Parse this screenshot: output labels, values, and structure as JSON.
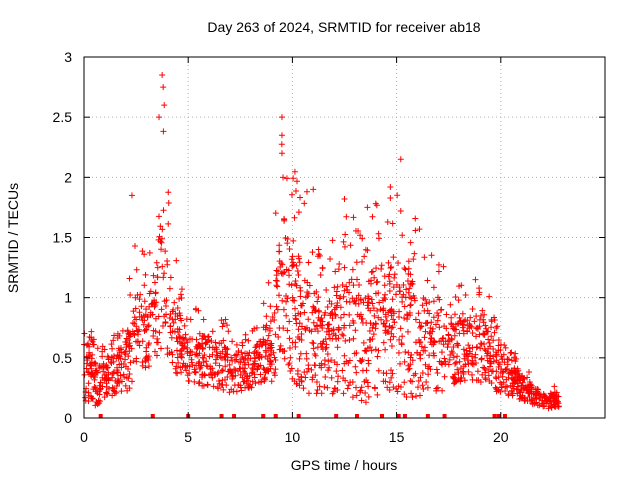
{
  "chart_data": {
    "type": "scatter",
    "title": "Day 263 of 2024, SRMTID for receiver ab18",
    "xlabel": "GPS time / hours",
    "ylabel": "SRMTID / TECUs",
    "xlim": [
      0,
      25
    ],
    "ylim": [
      0,
      3
    ],
    "x_ticks": [
      0,
      5,
      10,
      15,
      20
    ],
    "y_ticks": [
      0,
      0.5,
      1,
      1.5,
      2,
      2.5,
      3
    ],
    "x_tick_labels": [
      "0",
      "5",
      "10",
      "15",
      "20"
    ],
    "y_tick_labels": [
      "0",
      "0.5",
      "1",
      "1.5",
      "2",
      "2.5",
      "3"
    ],
    "grid": true,
    "marker": "+",
    "color": "#ff0000",
    "series": [
      {
        "name": "SRMTID",
        "envelope": [
          {
            "x": 0.0,
            "low": 0.15,
            "high": 0.85
          },
          {
            "x": 0.5,
            "low": 0.1,
            "high": 0.7
          },
          {
            "x": 1.0,
            "low": 0.15,
            "high": 0.6
          },
          {
            "x": 1.5,
            "low": 0.2,
            "high": 0.75
          },
          {
            "x": 2.0,
            "low": 0.2,
            "high": 0.9
          },
          {
            "x": 2.5,
            "low": 0.3,
            "high": 1.6
          },
          {
            "x": 3.0,
            "low": 0.4,
            "high": 1.3
          },
          {
            "x": 3.5,
            "low": 0.5,
            "high": 2.1
          },
          {
            "x": 3.8,
            "low": 0.6,
            "high": 2.85
          },
          {
            "x": 4.2,
            "low": 0.4,
            "high": 1.5
          },
          {
            "x": 5.0,
            "low": 0.3,
            "high": 0.9
          },
          {
            "x": 6.0,
            "low": 0.25,
            "high": 1.0
          },
          {
            "x": 7.0,
            "low": 0.2,
            "high": 0.8
          },
          {
            "x": 8.0,
            "low": 0.25,
            "high": 0.7
          },
          {
            "x": 9.0,
            "low": 0.3,
            "high": 1.2
          },
          {
            "x": 9.5,
            "low": 0.4,
            "high": 2.5
          },
          {
            "x": 10.5,
            "low": 0.2,
            "high": 1.9
          },
          {
            "x": 11.5,
            "low": 0.2,
            "high": 1.3
          },
          {
            "x": 12.5,
            "low": 0.2,
            "high": 1.8
          },
          {
            "x": 13.5,
            "low": 0.1,
            "high": 1.75
          },
          {
            "x": 14.5,
            "low": 0.2,
            "high": 1.9
          },
          {
            "x": 15.2,
            "low": 0.2,
            "high": 2.15
          },
          {
            "x": 16.0,
            "low": 0.1,
            "high": 1.6
          },
          {
            "x": 17.0,
            "low": 0.2,
            "high": 1.35
          },
          {
            "x": 18.0,
            "low": 0.3,
            "high": 1.1
          },
          {
            "x": 19.0,
            "low": 0.3,
            "high": 1.2
          },
          {
            "x": 20.0,
            "low": 0.2,
            "high": 0.8
          },
          {
            "x": 21.0,
            "low": 0.15,
            "high": 0.45
          },
          {
            "x": 22.0,
            "low": 0.08,
            "high": 0.3
          },
          {
            "x": 22.8,
            "low": 0.08,
            "high": 0.25
          }
        ],
        "peaks": [
          {
            "x": 3.75,
            "y": 2.85
          },
          {
            "x": 3.8,
            "y": 2.75
          },
          {
            "x": 3.6,
            "y": 2.5
          },
          {
            "x": 3.85,
            "y": 2.6
          },
          {
            "x": 2.3,
            "y": 1.85
          },
          {
            "x": 9.5,
            "y": 2.5
          },
          {
            "x": 9.5,
            "y": 2.35
          },
          {
            "x": 9.5,
            "y": 2.2
          },
          {
            "x": 9.55,
            "y": 2.0
          },
          {
            "x": 15.2,
            "y": 2.15
          },
          {
            "x": 14.7,
            "y": 1.92
          },
          {
            "x": 12.5,
            "y": 1.82
          },
          {
            "x": 13.6,
            "y": 1.75
          },
          {
            "x": 11.0,
            "y": 1.9
          },
          {
            "x": 10.7,
            "y": 1.88
          },
          {
            "x": 15.2,
            "y": 1.72
          },
          {
            "x": 16.1,
            "y": 1.57
          }
        ],
        "zero_gaps_x": [
          0.8,
          3.3,
          5.0,
          6.6,
          7.2,
          8.6,
          9.2,
          10.3,
          12.1,
          13.1,
          14.3,
          15.1,
          15.4,
          16.5,
          17.3,
          19.7,
          19.9,
          20.2
        ]
      }
    ]
  }
}
